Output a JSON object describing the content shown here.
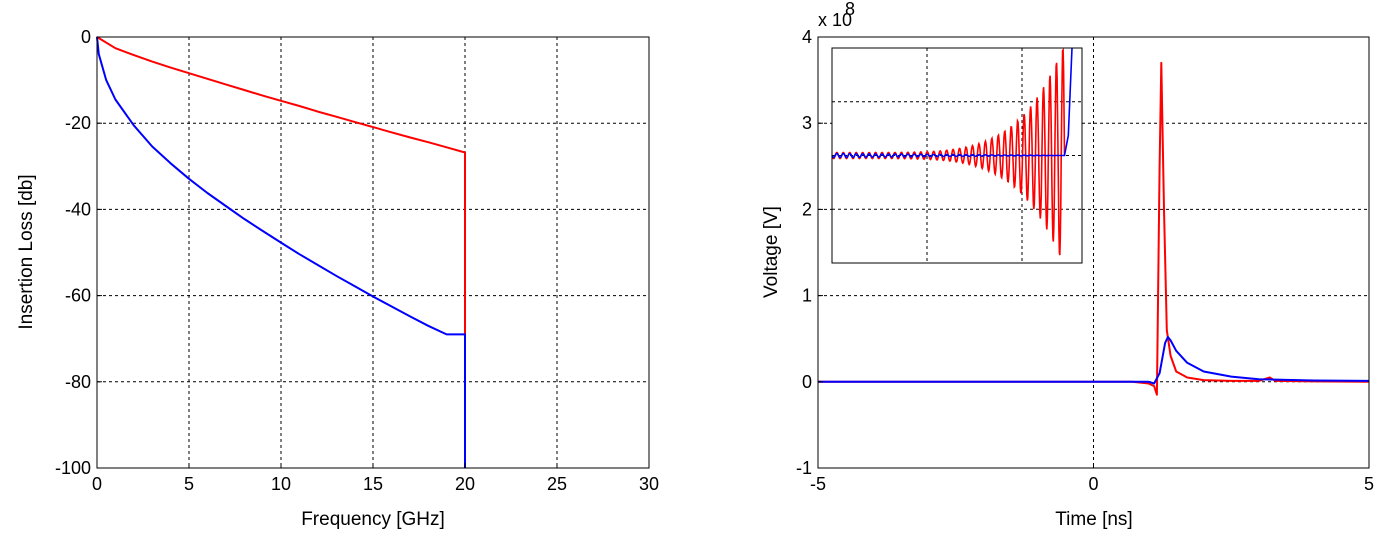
{
  "chart_data": [
    {
      "type": "line",
      "xlabel": "Frequency [GHz]",
      "ylabel": "Insertion Loss [db]",
      "xlim": [
        0,
        30
      ],
      "ylim": [
        -100,
        0
      ],
      "xticks": [
        "0",
        "5",
        "10",
        "15",
        "20",
        "25",
        "30"
      ],
      "yticks": [
        "-100",
        "-80",
        "-60",
        "-40",
        "-20",
        "0"
      ],
      "grid": true,
      "colors": {
        "red": "#ff0000",
        "blue": "#0000ff"
      },
      "series": [
        {
          "color": "#ff0000",
          "x": [
            0,
            1,
            2,
            3,
            4,
            5,
            6,
            7,
            8,
            9,
            10,
            11,
            12,
            13,
            14,
            15,
            16,
            17,
            18,
            19,
            20,
            20
          ],
          "y": [
            0,
            -2.6,
            -4.2,
            -5.7,
            -7.1,
            -8.4,
            -9.7,
            -11,
            -12.3,
            -13.6,
            -14.8,
            -16,
            -17.3,
            -18.5,
            -19.7,
            -20.9,
            -22.1,
            -23.3,
            -24.4,
            -25.6,
            -26.8,
            -100
          ]
        },
        {
          "color": "#0000ff",
          "x": [
            0,
            0.1,
            0.5,
            1,
            2,
            3,
            4,
            5,
            6,
            7,
            8,
            9,
            10,
            11,
            12,
            13,
            14,
            15,
            16,
            17,
            18,
            19,
            20,
            20
          ],
          "y": [
            0,
            -4,
            -10,
            -14.5,
            -20.5,
            -25.4,
            -29.3,
            -32.9,
            -36.2,
            -39.2,
            -42.2,
            -45,
            -47.7,
            -50.4,
            -52.9,
            -55.4,
            -57.8,
            -60.2,
            -62.5,
            -64.8,
            -67,
            -69,
            -69,
            -100
          ]
        }
      ]
    },
    {
      "type": "line",
      "xlabel": "Time [ns]",
      "ylabel": "Voltage [V]",
      "y_multiplier": "x 10",
      "y_multiplier_exponent": "8",
      "xlim": [
        -5,
        5
      ],
      "ylim": [
        -1,
        4
      ],
      "xticks": [
        "-5",
        "0",
        "5"
      ],
      "yticks": [
        "-1",
        "0",
        "1",
        "2",
        "3",
        "4"
      ],
      "grid": true,
      "series": [
        {
          "color": "#ff0000",
          "x": [
            -5,
            0.7,
            1.0,
            1.1,
            1.15,
            1.2,
            1.23,
            1.28,
            1.33,
            1.4,
            1.5,
            1.7,
            2.0,
            2.5,
            3.0,
            3.2,
            3.25,
            3.3,
            4.0,
            5.0
          ],
          "y": [
            0,
            0,
            -0.02,
            -0.05,
            -0.15,
            2.5,
            3.7,
            2.0,
            0.6,
            0.3,
            0.12,
            0.05,
            0.02,
            0.01,
            0.01,
            0.05,
            0.03,
            0.01,
            0.005,
            0
          ]
        },
        {
          "color": "#0000ff",
          "x": [
            -5,
            0.8,
            1.0,
            1.1,
            1.2,
            1.3,
            1.35,
            1.4,
            1.5,
            1.7,
            2.0,
            2.5,
            3.0,
            4.0,
            5.0
          ],
          "y": [
            0,
            0,
            0.0,
            -0.02,
            0.1,
            0.45,
            0.52,
            0.48,
            0.36,
            0.22,
            0.12,
            0.06,
            0.03,
            0.015,
            0.01
          ]
        }
      ],
      "inset": {
        "grid": true,
        "description_series": [
          "red",
          "blue"
        ]
      }
    }
  ]
}
